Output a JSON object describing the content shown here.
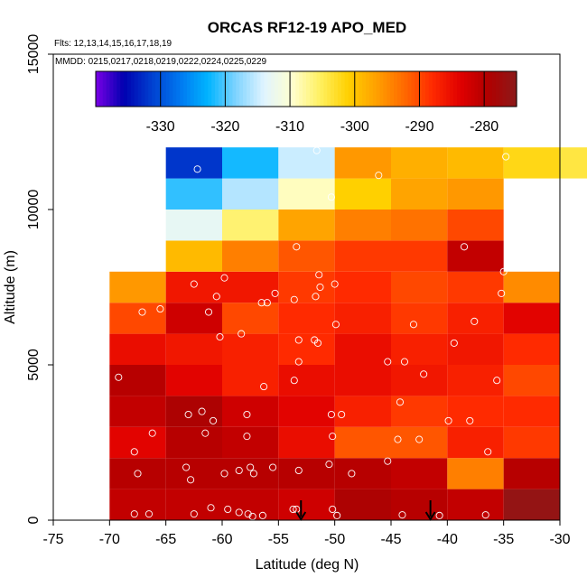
{
  "chart_data": {
    "type": "heatmap",
    "title": "ORCAS RF12-19 APO_MED",
    "flights_label": "Flts: 12,13,14,15,16,17,18,19",
    "dates_label": "MMDD: 0215,0217,0218,0219,0222,0224,0225,0229",
    "xlabel": "Latitude (deg N)",
    "ylabel": "Altitude (m)",
    "xlim": [
      -75,
      -30
    ],
    "ylim": [
      0,
      15000
    ],
    "x_ticks": [
      -75,
      -70,
      -65,
      -60,
      -55,
      -50,
      -45,
      -40,
      -35,
      -30
    ],
    "x_tick_labels": [
      "-75",
      "-70",
      "-65",
      "-60",
      "-55",
      "-50",
      "-45",
      "-40",
      "-35",
      "-30"
    ],
    "y_ticks": [
      0,
      5000,
      10000,
      15000
    ],
    "y_tick_labels": [
      "0",
      "5000",
      "10000",
      "15000"
    ],
    "colorbar": {
      "range": [
        -340,
        -275
      ],
      "ticks": [
        -330,
        -320,
        -310,
        -300,
        -290,
        -280
      ],
      "tick_labels": [
        "-330",
        "-320",
        "-310",
        "-300",
        "-290",
        "-280"
      ],
      "palette": [
        "#7a00e6",
        "#0000b0",
        "#0040d0",
        "#0078f0",
        "#00b4ff",
        "#80d4ff",
        "#e0f4ff",
        "#ffffd0",
        "#fff060",
        "#ffd000",
        "#ffa000",
        "#ff6a00",
        "#ff2a00",
        "#e00000",
        "#b00000",
        "#8c1a1a"
      ]
    },
    "cells": [
      {
        "lon": -70,
        "alt": 0,
        "value": -281
      },
      {
        "lon": -65,
        "alt": 0,
        "value": -281
      },
      {
        "lon": -60,
        "alt": 0,
        "value": -281
      },
      {
        "lon": -55,
        "alt": 0,
        "value": -282
      },
      {
        "lon": -50,
        "alt": 0,
        "value": -279
      },
      {
        "lon": -45,
        "alt": 0,
        "value": -280
      },
      {
        "lon": -40,
        "alt": 0,
        "value": -281
      },
      {
        "lon": -35,
        "alt": 0,
        "value": -276
      },
      {
        "lon": -70,
        "alt": 1000,
        "value": -280
      },
      {
        "lon": -65,
        "alt": 1000,
        "value": -280
      },
      {
        "lon": -60,
        "alt": 1000,
        "value": -280
      },
      {
        "lon": -55,
        "alt": 1000,
        "value": -280
      },
      {
        "lon": -50,
        "alt": 1000,
        "value": -280
      },
      {
        "lon": -45,
        "alt": 1000,
        "value": -281
      },
      {
        "lon": -40,
        "alt": 1000,
        "value": -294
      },
      {
        "lon": -35,
        "alt": 1000,
        "value": -280
      },
      {
        "lon": -70,
        "alt": 2000,
        "value": -284
      },
      {
        "lon": -65,
        "alt": 2000,
        "value": -280
      },
      {
        "lon": -60,
        "alt": 2000,
        "value": -281
      },
      {
        "lon": -55,
        "alt": 2000,
        "value": -285
      },
      {
        "lon": -50,
        "alt": 2000,
        "value": -291
      },
      {
        "lon": -45,
        "alt": 2000,
        "value": -291
      },
      {
        "lon": -40,
        "alt": 2000,
        "value": -287
      },
      {
        "lon": -35,
        "alt": 2000,
        "value": -289
      },
      {
        "lon": -70,
        "alt": 3000,
        "value": -281
      },
      {
        "lon": -65,
        "alt": 3000,
        "value": -279
      },
      {
        "lon": -60,
        "alt": 3000,
        "value": -282
      },
      {
        "lon": -55,
        "alt": 3000,
        "value": -284
      },
      {
        "lon": -50,
        "alt": 3000,
        "value": -287
      },
      {
        "lon": -45,
        "alt": 3000,
        "value": -289
      },
      {
        "lon": -40,
        "alt": 3000,
        "value": -288
      },
      {
        "lon": -35,
        "alt": 3000,
        "value": -288
      },
      {
        "lon": -70,
        "alt": 4000,
        "value": -280
      },
      {
        "lon": -65,
        "alt": 4000,
        "value": -284
      },
      {
        "lon": -60,
        "alt": 4000,
        "value": -287
      },
      {
        "lon": -55,
        "alt": 4000,
        "value": -285
      },
      {
        "lon": -50,
        "alt": 4000,
        "value": -285
      },
      {
        "lon": -45,
        "alt": 4000,
        "value": -286
      },
      {
        "lon": -40,
        "alt": 4000,
        "value": -287
      },
      {
        "lon": -35,
        "alt": 4000,
        "value": -290
      },
      {
        "lon": -70,
        "alt": 5000,
        "value": -285
      },
      {
        "lon": -65,
        "alt": 5000,
        "value": -286
      },
      {
        "lon": -60,
        "alt": 5000,
        "value": -287
      },
      {
        "lon": -55,
        "alt": 5000,
        "value": -288
      },
      {
        "lon": -50,
        "alt": 5000,
        "value": -285
      },
      {
        "lon": -45,
        "alt": 5000,
        "value": -287
      },
      {
        "lon": -40,
        "alt": 5000,
        "value": -286
      },
      {
        "lon": -35,
        "alt": 5000,
        "value": -288
      },
      {
        "lon": -70,
        "alt": 6000,
        "value": -290
      },
      {
        "lon": -65,
        "alt": 6000,
        "value": -282
      },
      {
        "lon": -60,
        "alt": 6000,
        "value": -290
      },
      {
        "lon": -55,
        "alt": 6000,
        "value": -288
      },
      {
        "lon": -50,
        "alt": 6000,
        "value": -287
      },
      {
        "lon": -45,
        "alt": 6000,
        "value": -289
      },
      {
        "lon": -40,
        "alt": 6000,
        "value": -287
      },
      {
        "lon": -35,
        "alt": 6000,
        "value": -284
      },
      {
        "lon": -70,
        "alt": 7000,
        "value": -296
      },
      {
        "lon": -65,
        "alt": 7000,
        "value": -286
      },
      {
        "lon": -60,
        "alt": 7000,
        "value": -286
      },
      {
        "lon": -55,
        "alt": 7000,
        "value": -289
      },
      {
        "lon": -50,
        "alt": 7000,
        "value": -288
      },
      {
        "lon": -45,
        "alt": 7000,
        "value": -290
      },
      {
        "lon": -40,
        "alt": 7000,
        "value": -289
      },
      {
        "lon": -35,
        "alt": 7000,
        "value": -295
      },
      {
        "lon": -65,
        "alt": 8000,
        "value": -299
      },
      {
        "lon": -60,
        "alt": 8000,
        "value": -294
      },
      {
        "lon": -55,
        "alt": 8000,
        "value": -291
      },
      {
        "lon": -50,
        "alt": 8000,
        "value": -289
      },
      {
        "lon": -45,
        "alt": 8000,
        "value": -289
      },
      {
        "lon": -40,
        "alt": 8000,
        "value": -281
      },
      {
        "lon": -65,
        "alt": 9000,
        "value": -313
      },
      {
        "lon": -60,
        "alt": 9000,
        "value": -306
      },
      {
        "lon": -55,
        "alt": 9000,
        "value": -297
      },
      {
        "lon": -50,
        "alt": 9000,
        "value": -294
      },
      {
        "lon": -45,
        "alt": 9000,
        "value": -293
      },
      {
        "lon": -40,
        "alt": 9000,
        "value": -290
      },
      {
        "lon": -65,
        "alt": 10000,
        "value": -321
      },
      {
        "lon": -60,
        "alt": 10000,
        "value": -316
      },
      {
        "lon": -55,
        "alt": 10000,
        "value": -309
      },
      {
        "lon": -50,
        "alt": 10000,
        "value": -301
      },
      {
        "lon": -45,
        "alt": 10000,
        "value": -297
      },
      {
        "lon": -40,
        "alt": 10000,
        "value": -296
      },
      {
        "lon": -65,
        "alt": 11000,
        "value": -332
      },
      {
        "lon": -60,
        "alt": 11000,
        "value": -322
      },
      {
        "lon": -55,
        "alt": 11000,
        "value": -315
      },
      {
        "lon": -50,
        "alt": 11000,
        "value": -296
      },
      {
        "lon": -45,
        "alt": 11000,
        "value": -298
      },
      {
        "lon": -40,
        "alt": 11000,
        "value": -299
      },
      {
        "lon": -35,
        "alt": 11000,
        "value": -302
      },
      {
        "lon": -30,
        "alt": 11000,
        "value": -304
      }
    ],
    "samples": [
      [
        -67.8,
        200
      ],
      [
        -66.5,
        200
      ],
      [
        -62.5,
        200
      ],
      [
        -61,
        400
      ],
      [
        -59.5,
        350
      ],
      [
        -58.5,
        250
      ],
      [
        -57.7,
        200
      ],
      [
        -57.3,
        120
      ],
      [
        -56.4,
        150
      ],
      [
        -53.7,
        350
      ],
      [
        -53.4,
        350
      ],
      [
        -50.2,
        350
      ],
      [
        -49.8,
        150
      ],
      [
        -44,
        170
      ],
      [
        -40.7,
        150
      ],
      [
        -36.6,
        170
      ],
      [
        -67.5,
        1500
      ],
      [
        -63.2,
        1700
      ],
      [
        -62.8,
        1300
      ],
      [
        -59.8,
        1500
      ],
      [
        -58.5,
        1600
      ],
      [
        -57.5,
        1700
      ],
      [
        -57.2,
        1500
      ],
      [
        -55.5,
        1700
      ],
      [
        -53.2,
        1600
      ],
      [
        -50.5,
        1800
      ],
      [
        -48.5,
        1500
      ],
      [
        -45.3,
        1900
      ],
      [
        -67.8,
        2200
      ],
      [
        -66.2,
        2800
      ],
      [
        -61.5,
        2800
      ],
      [
        -57.8,
        2700
      ],
      [
        -50.2,
        2700
      ],
      [
        -44.4,
        2600
      ],
      [
        -42.5,
        2600
      ],
      [
        -36.4,
        2200
      ],
      [
        -63,
        3400
      ],
      [
        -61.8,
        3500
      ],
      [
        -60.8,
        3200
      ],
      [
        -57.8,
        3400
      ],
      [
        -50.3,
        3400
      ],
      [
        -49.4,
        3400
      ],
      [
        -44.2,
        3800
      ],
      [
        -39.9,
        3200
      ],
      [
        -38,
        3200
      ],
      [
        -69.2,
        4600
      ],
      [
        -56.3,
        4300
      ],
      [
        -53.6,
        4500
      ],
      [
        -42.1,
        4700
      ],
      [
        -35.6,
        4500
      ],
      [
        -53.2,
        5100
      ],
      [
        -45.3,
        5100
      ],
      [
        -43.8,
        5100
      ],
      [
        -60.2,
        5900
      ],
      [
        -58.3,
        6000
      ],
      [
        -53.2,
        5800
      ],
      [
        -51.8,
        5800
      ],
      [
        -51.5,
        5700
      ],
      [
        -39.4,
        5700
      ],
      [
        -37.6,
        6400
      ],
      [
        -43,
        6300
      ],
      [
        -49.9,
        6300
      ],
      [
        -67.1,
        6700
      ],
      [
        -65.5,
        6800
      ],
      [
        -61.2,
        6700
      ],
      [
        -56.5,
        7000
      ],
      [
        -56,
        7000
      ],
      [
        -55.3,
        7300
      ],
      [
        -53.6,
        7100
      ],
      [
        -51.7,
        7200
      ],
      [
        -51.3,
        7500
      ],
      [
        -50,
        7600
      ],
      [
        -62.5,
        7600
      ],
      [
        -59.8,
        7800
      ],
      [
        -60.5,
        7200
      ],
      [
        -51.4,
        7900
      ],
      [
        -35.2,
        7300
      ],
      [
        -53.4,
        8800
      ],
      [
        -38.5,
        8800
      ],
      [
        -35,
        8000
      ],
      [
        -51.6,
        11900
      ],
      [
        -62.2,
        11300
      ],
      [
        -46.1,
        11100
      ],
      [
        -50.3,
        10400
      ],
      [
        -34.8,
        11700
      ]
    ],
    "flight_arrows": [
      -53,
      -41.5
    ]
  }
}
